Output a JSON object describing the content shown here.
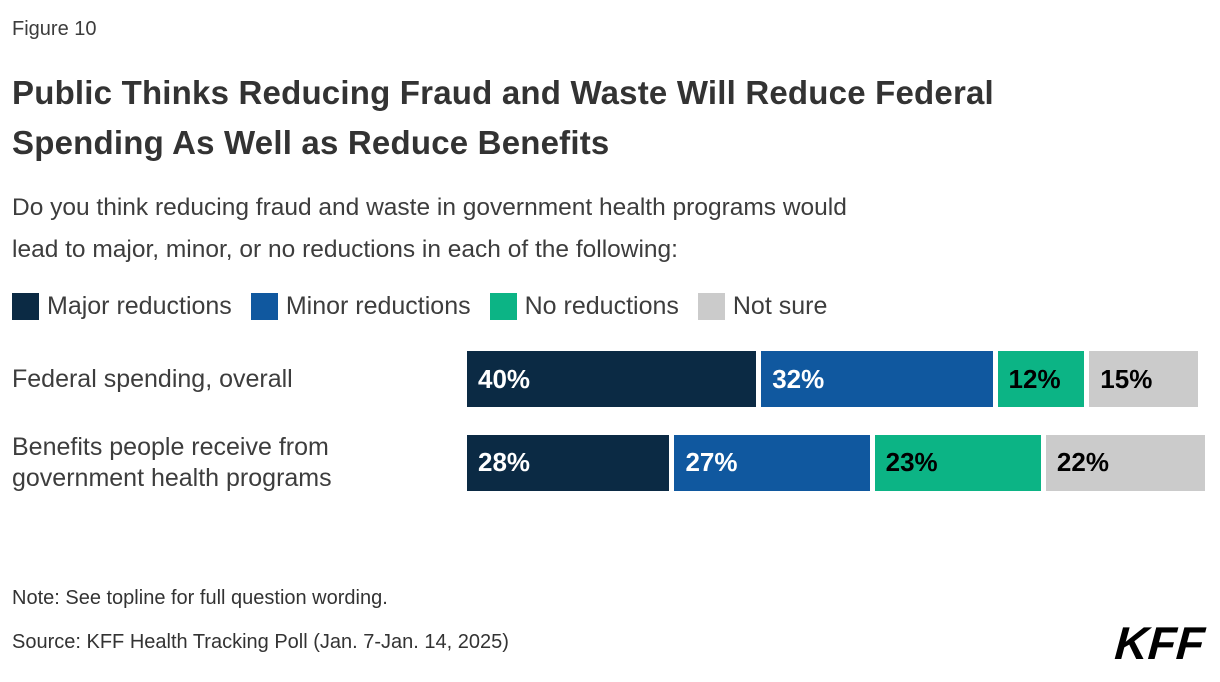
{
  "figure_label": "Figure 10",
  "title_lines": [
    "Public Thinks Reducing Fraud and Waste Will Reduce Federal",
    "Spending As Well as Reduce Benefits"
  ],
  "subtitle_lines": [
    "Do you think reducing fraud and waste in government health programs would",
    "lead to major, minor, or no reductions in each of the following:"
  ],
  "chart_data": {
    "type": "bar",
    "orientation": "horizontal",
    "stacked": true,
    "legend_position": "top",
    "xlim": [
      0,
      100
    ],
    "value_suffix": "%",
    "categories": [
      "Federal spending, overall",
      "Benefits people receive from government health programs"
    ],
    "series": [
      {
        "name": "Major reductions",
        "color": "#0B2A44",
        "label_color": "#FFFFFF",
        "values": [
          40,
          28
        ]
      },
      {
        "name": "Minor reductions",
        "color": "#10589F",
        "label_color": "#FFFFFF",
        "values": [
          32,
          27
        ]
      },
      {
        "name": "No reductions",
        "color": "#0CB485",
        "label_color": "#000000",
        "values": [
          12,
          23
        ]
      },
      {
        "name": "Not sure",
        "color": "#CBCBCB",
        "label_color": "#000000",
        "values": [
          15,
          22
        ]
      }
    ]
  },
  "note": "Note: See topline for full question wording.",
  "source": "Source: KFF Health Tracking Poll (Jan. 7-Jan. 14, 2025)",
  "logo_text": "KFF"
}
